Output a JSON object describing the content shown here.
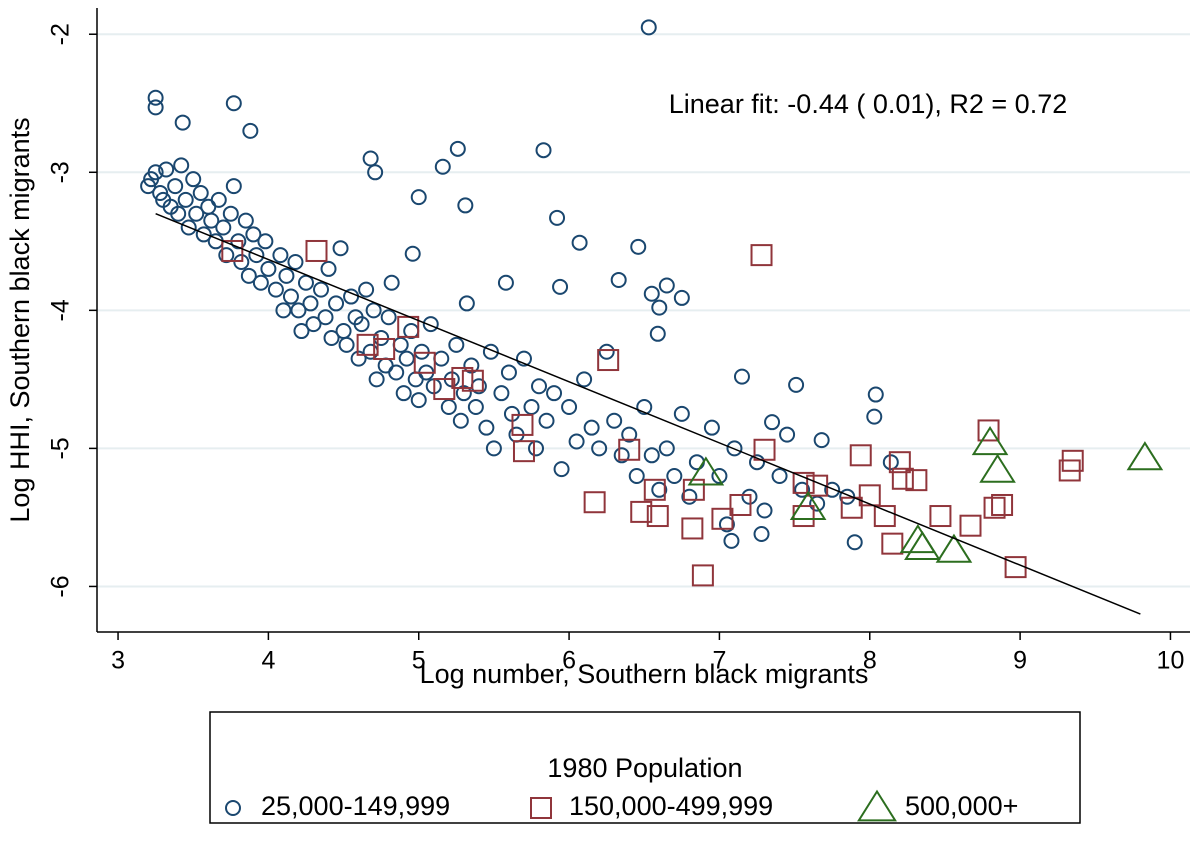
{
  "chart_data": {
    "type": "scatter",
    "annotation": "Linear fit: -0.44 ( 0.01), R2 =  0.72",
    "x_label": "Log number, Southern black migrants",
    "y_label": "Log HHI, Southern black migrants",
    "legend_title": "1980 Population",
    "xlim": [
      2.86,
      10.13
    ],
    "ylim": [
      -6.33,
      -1.81
    ],
    "xticks": [
      3,
      4,
      5,
      6,
      7,
      8,
      9,
      10
    ],
    "yticks": [
      -6,
      -5,
      -4,
      -3,
      -2
    ],
    "grid": true,
    "fit": {
      "color": "#000000",
      "x": [
        3.25,
        9.8
      ],
      "y": [
        -3.3,
        -6.2
      ]
    },
    "series": [
      {
        "name": "25,000-149,999",
        "marker": "circle",
        "color": "#1a476f",
        "x": [
          6.53,
          3.25,
          3.25,
          3.43,
          3.77,
          3.88,
          4.68,
          4.71,
          5.26,
          5.16,
          5.83,
          5.31,
          5.0,
          5.92,
          6.07,
          6.46,
          4.96,
          6.33,
          5.58,
          5.94,
          6.55,
          6.65,
          6.75,
          6.6,
          6.59,
          7.15,
          7.51,
          8.04,
          8.03,
          7.9,
          7.68,
          7.35,
          7.08,
          7.28,
          8.14,
          3.2,
          3.22,
          3.25,
          3.28,
          3.3,
          3.32,
          3.35,
          3.38,
          3.4,
          3.42,
          3.45,
          3.47,
          3.5,
          3.52,
          3.55,
          3.57,
          3.6,
          3.62,
          3.65,
          3.67,
          3.7,
          3.72,
          3.75,
          3.77,
          3.8,
          3.82,
          3.85,
          3.87,
          3.9,
          3.92,
          3.95,
          3.98,
          4.0,
          4.05,
          4.08,
          4.1,
          4.12,
          4.15,
          4.18,
          4.2,
          4.22,
          4.25,
          4.28,
          4.3,
          4.35,
          4.38,
          4.4,
          4.42,
          4.45,
          4.48,
          4.5,
          4.52,
          4.55,
          4.58,
          4.6,
          4.62,
          4.65,
          4.68,
          4.7,
          4.72,
          4.75,
          4.78,
          4.8,
          4.82,
          4.85,
          4.88,
          4.9,
          4.92,
          4.95,
          4.98,
          5.0,
          5.02,
          5.05,
          5.08,
          5.1,
          5.15,
          5.2,
          5.22,
          5.25,
          5.28,
          5.3,
          5.32,
          5.35,
          5.38,
          5.4,
          5.45,
          5.48,
          5.5,
          5.55,
          5.6,
          5.62,
          5.65,
          5.7,
          5.75,
          5.78,
          5.8,
          5.85,
          5.9,
          5.95,
          6.0,
          6.05,
          6.1,
          6.15,
          6.2,
          6.25,
          6.3,
          6.35,
          6.4,
          6.45,
          6.5,
          6.55,
          6.6,
          6.65,
          6.7,
          6.75,
          6.8,
          6.85,
          6.95,
          7.0,
          7.05,
          7.1,
          7.2,
          7.25,
          7.3,
          7.4,
          7.45,
          7.55,
          7.65,
          7.75,
          7.85
        ],
        "values": [
          -1.95,
          -2.46,
          -2.53,
          -2.64,
          -2.5,
          -2.7,
          -2.9,
          -3.0,
          -2.83,
          -2.96,
          -2.84,
          -3.24,
          -3.18,
          -3.33,
          -3.51,
          -3.54,
          -3.59,
          -3.78,
          -3.8,
          -3.83,
          -3.88,
          -3.82,
          -3.91,
          -3.98,
          -4.17,
          -4.48,
          -4.54,
          -4.61,
          -4.77,
          -5.68,
          -4.94,
          -4.81,
          -5.67,
          -5.62,
          -5.1,
          -3.1,
          -3.05,
          -3.0,
          -3.15,
          -3.2,
          -2.98,
          -3.25,
          -3.1,
          -3.3,
          -2.95,
          -3.2,
          -3.4,
          -3.05,
          -3.3,
          -3.15,
          -3.45,
          -3.25,
          -3.35,
          -3.5,
          -3.2,
          -3.4,
          -3.6,
          -3.3,
          -3.1,
          -3.5,
          -3.65,
          -3.35,
          -3.75,
          -3.45,
          -3.6,
          -3.8,
          -3.5,
          -3.7,
          -3.85,
          -3.6,
          -4.0,
          -3.75,
          -3.9,
          -3.65,
          -4.0,
          -4.15,
          -3.8,
          -3.95,
          -4.1,
          -3.85,
          -4.05,
          -3.7,
          -4.2,
          -3.95,
          -3.55,
          -4.15,
          -4.25,
          -3.9,
          -4.05,
          -4.35,
          -4.1,
          -3.85,
          -4.3,
          -4.0,
          -4.5,
          -4.2,
          -4.4,
          -4.05,
          -3.8,
          -4.45,
          -4.25,
          -4.6,
          -4.35,
          -4.15,
          -4.5,
          -4.65,
          -4.3,
          -4.45,
          -4.1,
          -4.55,
          -4.35,
          -4.7,
          -4.5,
          -4.25,
          -4.8,
          -4.6,
          -3.95,
          -4.4,
          -4.7,
          -4.55,
          -4.85,
          -4.3,
          -5.0,
          -4.6,
          -4.45,
          -4.75,
          -4.9,
          -4.35,
          -4.7,
          -5.0,
          -4.55,
          -4.8,
          -4.6,
          -5.15,
          -4.7,
          -4.95,
          -4.5,
          -4.85,
          -5.0,
          -4.3,
          -4.8,
          -5.05,
          -4.9,
          -5.2,
          -4.7,
          -5.05,
          -5.3,
          -5.0,
          -5.2,
          -4.75,
          -5.35,
          -5.1,
          -4.85,
          -5.2,
          -5.55,
          -5.0,
          -5.35,
          -5.1,
          -5.45,
          -5.2,
          -4.9,
          -5.3,
          -5.4,
          -5.3,
          -5.35
        ]
      },
      {
        "name": "150,000-499,999",
        "marker": "square",
        "color": "#90353b",
        "x": [
          3.76,
          4.32,
          4.66,
          4.77,
          4.93,
          5.04,
          5.17,
          5.29,
          5.36,
          5.69,
          5.7,
          6.26,
          6.17,
          6.4,
          6.48,
          6.59,
          6.57,
          6.82,
          6.83,
          6.89,
          7.02,
          7.14,
          7.28,
          7.3,
          7.56,
          7.56,
          7.65,
          7.88,
          7.94,
          8.0,
          8.1,
          8.15,
          8.2,
          8.22,
          8.31,
          8.47,
          8.67,
          8.79,
          8.83,
          8.88,
          8.97,
          9.33,
          9.35
        ],
        "values": [
          -3.57,
          -3.57,
          -4.25,
          -4.28,
          -4.12,
          -4.38,
          -4.57,
          -4.49,
          -4.51,
          -4.83,
          -5.02,
          -4.36,
          -5.39,
          -5.01,
          -5.46,
          -5.49,
          -5.3,
          -5.58,
          -5.3,
          -5.92,
          -5.51,
          -5.41,
          -3.6,
          -5.01,
          -5.25,
          -5.49,
          -5.27,
          -5.43,
          -5.05,
          -5.34,
          -5.49,
          -5.69,
          -5.1,
          -5.22,
          -5.23,
          -5.49,
          -5.56,
          -4.87,
          -5.43,
          -5.41,
          -5.86,
          -5.16,
          -5.09
        ]
      },
      {
        "name": "500,000+",
        "marker": "triangle",
        "color": "#2c6e1f",
        "x": [
          6.91,
          7.59,
          8.32,
          8.35,
          8.56,
          8.8,
          8.85,
          9.83
        ],
        "values": [
          -5.18,
          -5.43,
          -5.67,
          -5.72,
          -5.74,
          -4.96,
          -5.16,
          -5.07
        ]
      }
    ]
  }
}
